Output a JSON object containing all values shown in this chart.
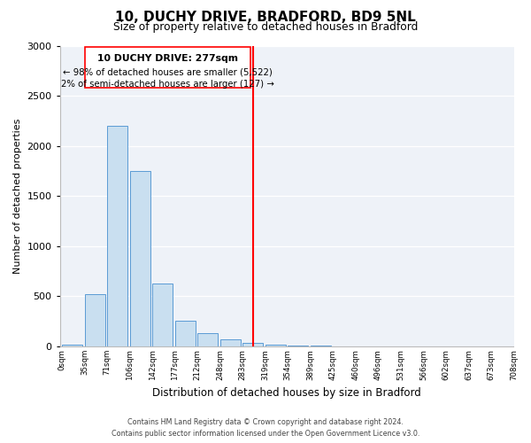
{
  "title": "10, DUCHY DRIVE, BRADFORD, BD9 5NL",
  "subtitle": "Size of property relative to detached houses in Bradford",
  "xlabel": "Distribution of detached houses by size in Bradford",
  "ylabel": "Number of detached properties",
  "bar_color": "#c9dff0",
  "bar_edge_color": "#5b9bd5",
  "background_color": "#eef2f8",
  "bin_edges": [
    "0sqm",
    "35sqm",
    "71sqm",
    "106sqm",
    "142sqm",
    "177sqm",
    "212sqm",
    "248sqm",
    "283sqm",
    "319sqm",
    "354sqm",
    "389sqm",
    "425sqm",
    "460sqm",
    "496sqm",
    "531sqm",
    "566sqm",
    "602sqm",
    "637sqm",
    "673sqm",
    "708sqm"
  ],
  "bar_heights": [
    20,
    520,
    2200,
    1750,
    630,
    260,
    130,
    70,
    35,
    20,
    10,
    5,
    3,
    2,
    1,
    0,
    0,
    0,
    0,
    0
  ],
  "property_line_x": 8,
  "property_line_label": "10 DUCHY DRIVE: 277sqm",
  "annotation_line1": "← 98% of detached houses are smaller (5,522)",
  "annotation_line2": "2% of semi-detached houses are larger (127) →",
  "ylim": [
    0,
    3000
  ],
  "yticks": [
    0,
    500,
    1000,
    1500,
    2000,
    2500,
    3000
  ],
  "footnote1": "Contains HM Land Registry data © Crown copyright and database right 2024.",
  "footnote2": "Contains public sector information licensed under the Open Government Licence v3.0."
}
